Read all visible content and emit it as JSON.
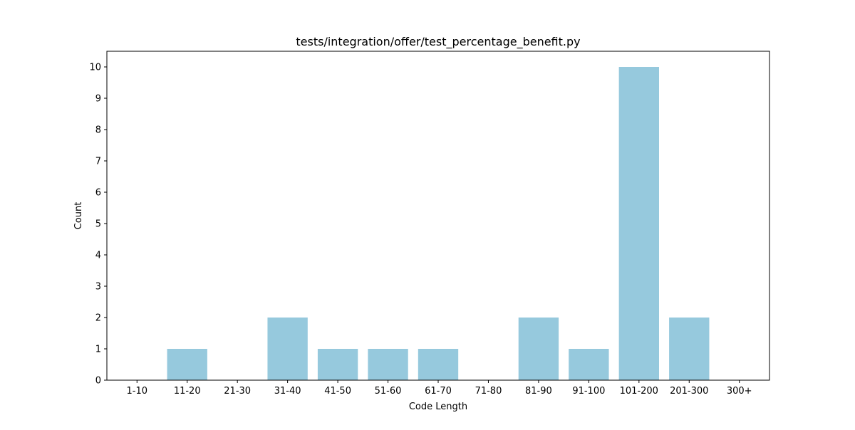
{
  "chart_data": {
    "type": "bar",
    "title": "tests/integration/offer/test_percentage_benefit.py",
    "xlabel": "Code Length",
    "ylabel": "Count",
    "categories": [
      "1-10",
      "11-20",
      "21-30",
      "31-40",
      "41-50",
      "51-60",
      "61-70",
      "71-80",
      "81-90",
      "91-100",
      "101-200",
      "201-300",
      "300+"
    ],
    "values": [
      0,
      1,
      0,
      2,
      1,
      1,
      1,
      0,
      2,
      1,
      10,
      2,
      0
    ],
    "ylim": [
      0,
      10.5
    ],
    "yticks": [
      0,
      1,
      2,
      3,
      4,
      5,
      6,
      7,
      8,
      9,
      10
    ],
    "grid": false,
    "legend": "none",
    "bar_color": "#96c9dd"
  }
}
